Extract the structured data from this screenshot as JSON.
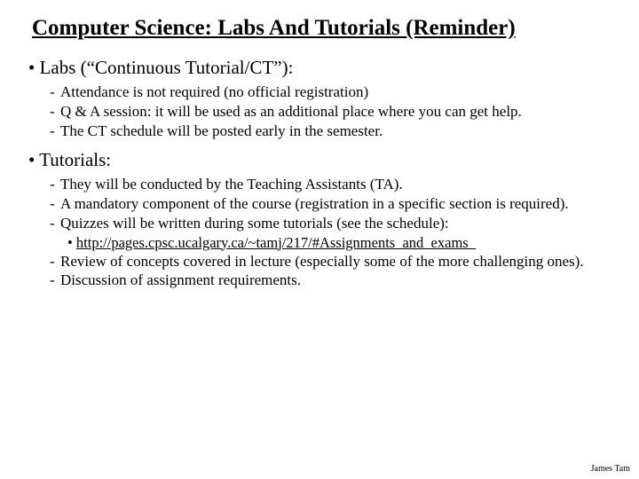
{
  "title": "Computer Science: Labs And Tutorials (Reminder)",
  "sections": [
    {
      "heading": "• Labs (“Continuous Tutorial/CT”):",
      "items": [
        "Attendance is not required (no official registration)",
        "Q & A session: it will be used as an additional place where you can get help.",
        "The CT schedule will be posted early in the semester."
      ]
    },
    {
      "heading": "• Tutorials:",
      "items": [
        "They will be conducted by the Teaching Assistants (TA).",
        "A mandatory component of the course (registration in a specific section is required).",
        "Quizzes will be written during some tutorials (see the schedule):"
      ],
      "link_bullet": "•",
      "link_text": "http://pages.cpsc.ucalgary.ca/~tamj/217/#Assignments_and_exams_",
      "items_after": [
        "Review of concepts covered in lecture (especially some of the more challenging ones).",
        "Discussion of assignment requirements."
      ]
    }
  ],
  "footer": "James Tam"
}
